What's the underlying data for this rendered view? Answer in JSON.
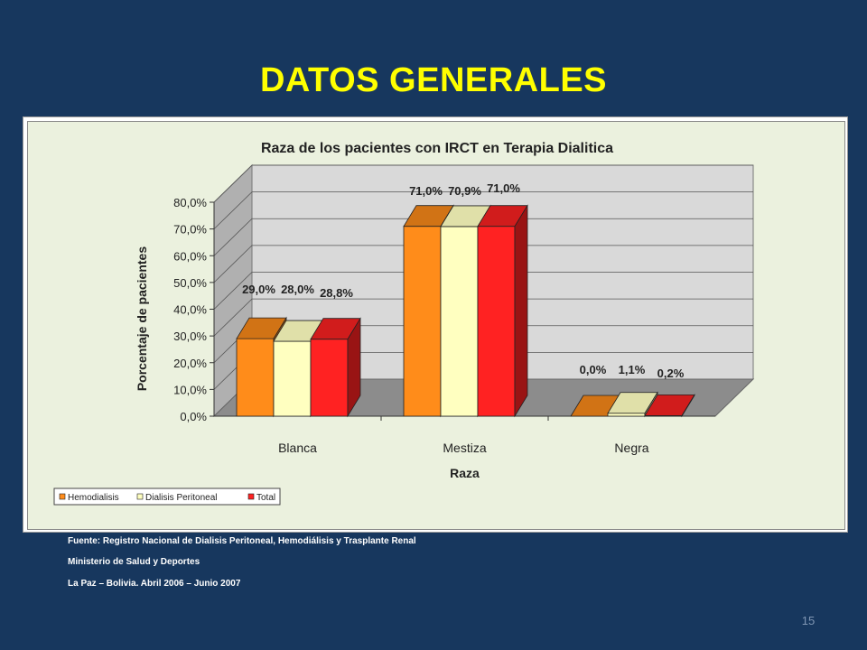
{
  "slide": {
    "title": "DATOS GENERALES",
    "page_number": "15"
  },
  "source": {
    "line1": "Fuente: Registro Nacional de Dialisis Peritoneal, Hemodiálisis y Trasplante Renal",
    "line2": "Ministerio de Salud y Deportes",
    "line3": "La Paz – Bolivia.  Abril 2006 – Junio 2007"
  },
  "chart_data": {
    "type": "bar",
    "title": "Raza de los pacientes con IRCT en Terapia Dialitica",
    "xlabel": "Raza",
    "ylabel": "Porcentaje de pacientes",
    "categories": [
      "Blanca",
      "Mestiza",
      "Negra"
    ],
    "ylim": [
      0,
      80
    ],
    "yticks": [
      "0,0%",
      "10,0%",
      "20,0%",
      "30,0%",
      "40,0%",
      "50,0%",
      "60,0%",
      "70,0%",
      "80,0%"
    ],
    "grid": true,
    "three_d": true,
    "legend_position": "bottom-left",
    "series": [
      {
        "name": "Hemodialisis",
        "values": [
          29.0,
          71.0,
          0.0
        ],
        "labels": [
          "29,0%",
          "71,0%",
          "0,0%"
        ],
        "color": "#ff8c1a"
      },
      {
        "name": "Dialisis Peritoneal",
        "values": [
          28.0,
          70.9,
          1.1
        ],
        "labels": [
          "28,0%",
          "70,9%",
          "1,1%"
        ],
        "color": "#ffffc0"
      },
      {
        "name": "Total",
        "values": [
          28.8,
          71.0,
          0.2
        ],
        "labels": [
          "28,8%",
          "71,0%",
          "0,2%"
        ],
        "color": "#ff2222"
      }
    ]
  }
}
